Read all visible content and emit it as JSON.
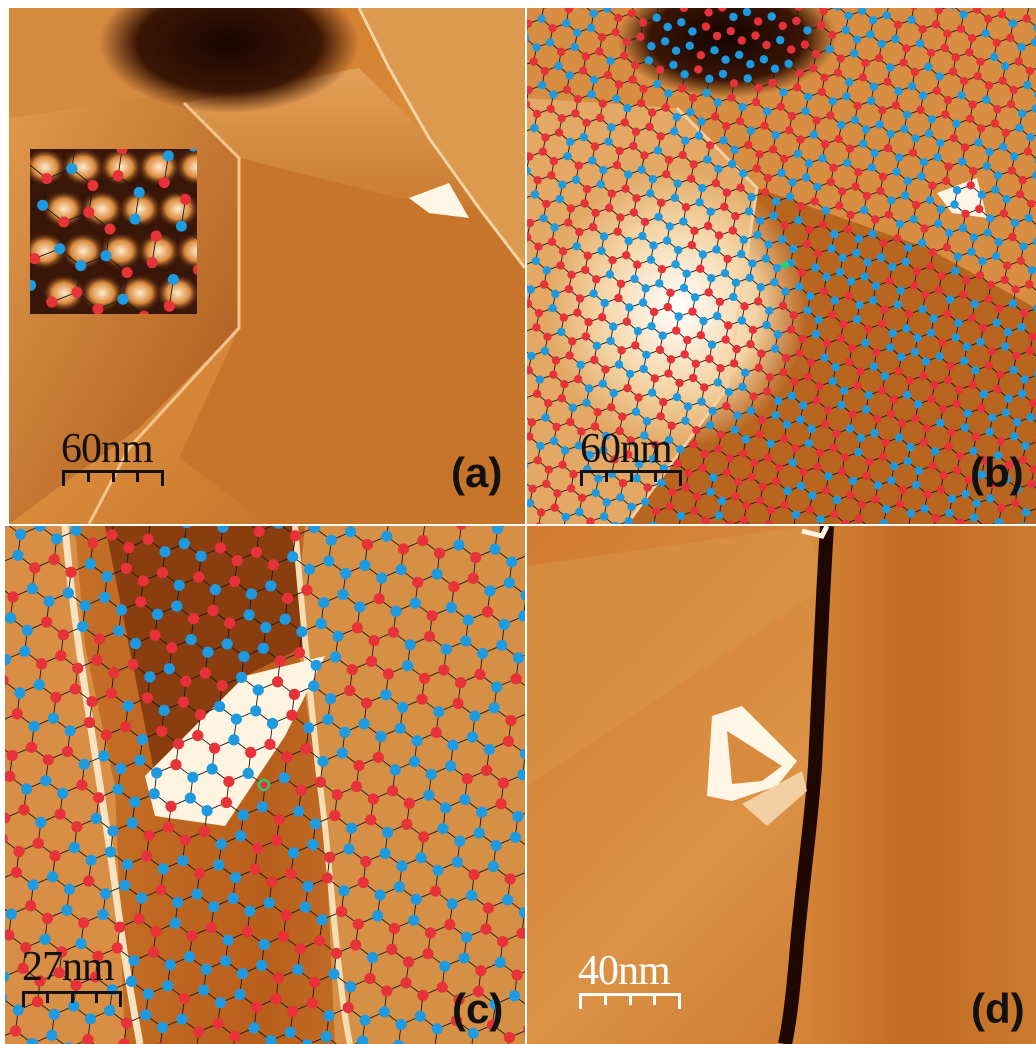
{
  "figure": {
    "colors": {
      "lattice_red": "#e8323a",
      "lattice_blue": "#1e9be0",
      "lattice_edge": "#1a1a1a",
      "bright": "#fff6e6",
      "mid": "#d07a2a",
      "dark": "#1e0800",
      "defect_green": "#2ecc71"
    },
    "panels": [
      {
        "id": "a",
        "label": "(a)",
        "scale_text": "60nm",
        "scale_color": "#111111",
        "has_lattice": false,
        "has_inset": true
      },
      {
        "id": "b",
        "label": "(b)",
        "scale_text": "60nm",
        "scale_color": "#111111",
        "has_lattice": true,
        "has_inset": false
      },
      {
        "id": "c",
        "label": "(c)",
        "scale_text": "27nm",
        "scale_color": "#111111",
        "has_lattice": true,
        "has_inset": false
      },
      {
        "id": "d",
        "label": "(d)",
        "scale_text": "40nm",
        "scale_color": "#ffffff",
        "has_lattice": false,
        "has_inset": false
      }
    ]
  }
}
